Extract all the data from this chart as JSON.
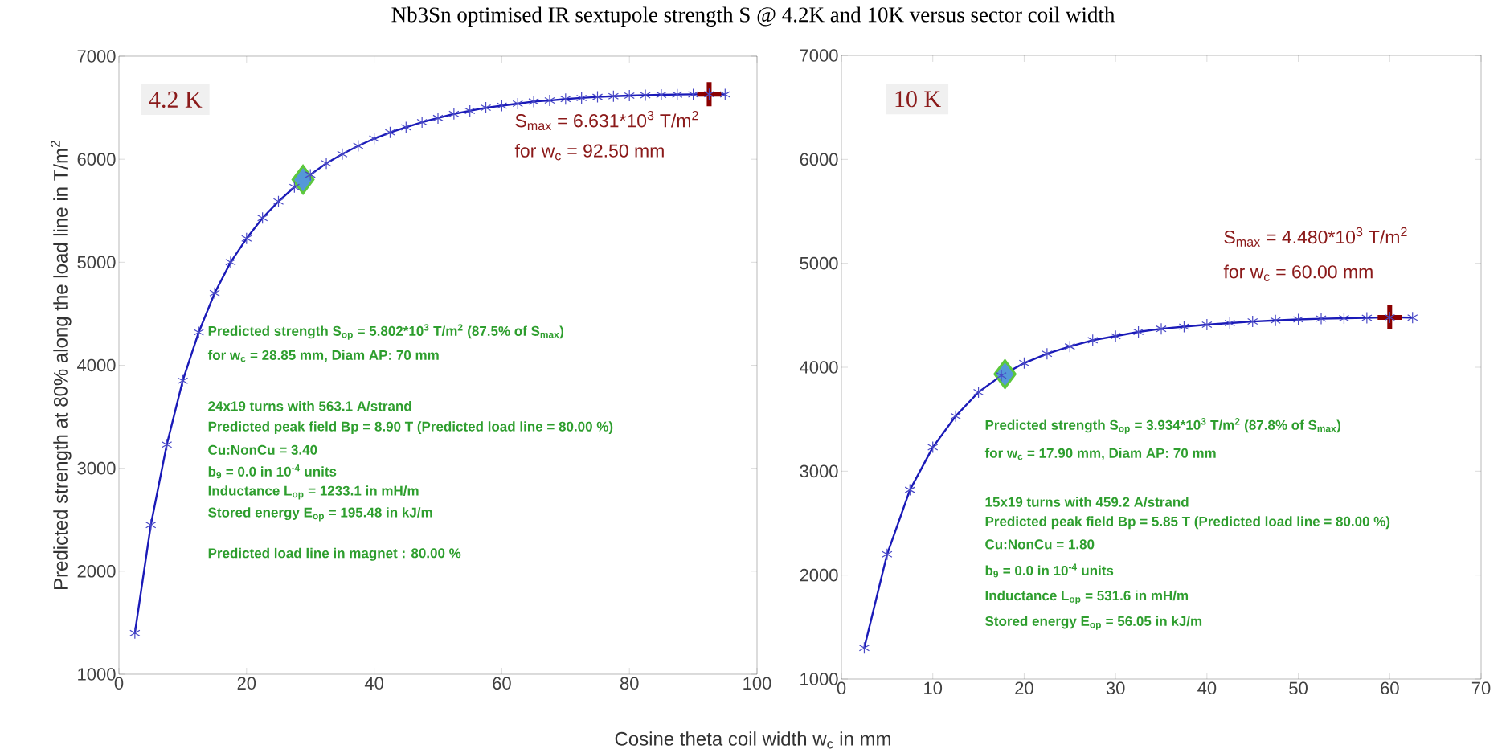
{
  "chart_data": [
    {
      "type": "line",
      "title": "Nb3Sn optimised IR sextupole strength S @ 4.2K and 10K versus sector coil width",
      "xlabel": "Cosine theta coil width w$_{c}$ in mm",
      "ylabel": "Predicted strength at 80% along the load line in T/m$^{2}$",
      "xlim": [
        0,
        100
      ],
      "xticks": [
        0,
        20,
        40,
        60,
        80,
        100
      ],
      "ylim": [
        1000,
        7000
      ],
      "yticks": [
        1000,
        2000,
        3000,
        4000,
        5000,
        6000,
        7000
      ],
      "marker": "cross",
      "line_style": "solid",
      "series": [
        {
          "color": "#1a1ab8",
          "x": [
            2.5,
            5,
            7.5,
            10,
            12.5,
            15,
            17.5,
            20,
            22.5,
            25,
            27.5,
            30,
            32.5,
            35,
            37.5,
            40,
            42.5,
            45,
            47.5,
            50,
            52.5,
            55,
            57.5,
            60,
            62.5,
            65,
            67.5,
            70,
            72.5,
            75,
            77.5,
            80,
            82.5,
            85,
            87.5,
            90,
            92.5,
            95
          ],
          "values": [
            1400,
            2450,
            3230,
            3850,
            4320,
            4700,
            5000,
            5230,
            5430,
            5590,
            5730,
            5850,
            5960,
            6050,
            6130,
            6200,
            6260,
            6310,
            6360,
            6400,
            6440,
            6470,
            6500,
            6520,
            6540,
            6560,
            6570,
            6585,
            6595,
            6605,
            6612,
            6618,
            6622,
            6626,
            6628,
            6630,
            6631,
            6630
          ]
        },
        {
          "type": "scatter",
          "marker": "diamond",
          "color": "#5cc83c",
          "x": [
            28.85
          ],
          "values": [
            5802
          ]
        },
        {
          "type": "scatter",
          "marker": "cross",
          "color": "#8b0000",
          "x": [
            92.5
          ],
          "values": [
            6631
          ]
        }
      ],
      "annotations": [
        "4.2 K",
        "S$_{max}$ = 6.631*10$^{3}$ T/m$^{2}$",
        "for w$_{c}$ = 92.50 mm",
        "Predicted strength S$_{op}$ = 5.802*10$^{3}$ T/m$^{2}$ (87.5% of S$_{max}$)",
        "for w$_{c}$ = 28.85 mm, Diam AP: 70 mm",
        "24x19 turns with 563.1 A/strand",
        "Predicted peak field Bp = 8.90 T (Predicted load line = 80.00 %)",
        "Cu:NonCu = 3.40",
        "b$_{9}$ = 0.0 in 10$^{-4}$ units",
        "Inductance L$_{op}$ = 1233.1 in mH/m",
        "Stored energy E$_{op}$ = 195.48 in kJ/m",
        "Predicted load line in magnet : 80.00 %"
      ]
    },
    {
      "type": "line",
      "xlim": [
        0,
        70
      ],
      "xticks": [
        0,
        10,
        20,
        30,
        40,
        50,
        60,
        70
      ],
      "ylim": [
        1000,
        7000
      ],
      "yticks": [
        1000,
        2000,
        3000,
        4000,
        5000,
        6000,
        7000
      ],
      "marker": "cross",
      "line_style": "solid",
      "series": [
        {
          "color": "#1a1ab8",
          "x": [
            2.5,
            5,
            7.5,
            10,
            12.5,
            15,
            17.5,
            20,
            22.5,
            25,
            27.5,
            30,
            32.5,
            35,
            37.5,
            40,
            42.5,
            45,
            47.5,
            50,
            52.5,
            55,
            57.5,
            60,
            62.5
          ],
          "values": [
            1300,
            2200,
            2820,
            3230,
            3530,
            3760,
            3920,
            4040,
            4130,
            4200,
            4260,
            4300,
            4340,
            4370,
            4390,
            4410,
            4425,
            4440,
            4450,
            4460,
            4467,
            4472,
            4476,
            4480,
            4478
          ]
        },
        {
          "type": "scatter",
          "marker": "diamond",
          "color": "#5cc83c",
          "x": [
            17.9
          ],
          "values": [
            3934
          ]
        },
        {
          "type": "scatter",
          "marker": "cross",
          "color": "#8b0000",
          "x": [
            60
          ],
          "values": [
            4480
          ]
        }
      ],
      "annotations": [
        "10 K",
        "S$_{max}$ = 4.480*10$^{3}$ T/m$^{2}$",
        "for w$_{c}$ = 60.00 mm",
        "Predicted strength S$_{op}$ = 3.934*10$^{3}$ T/m$^{2}$ (87.8% of S$_{max}$)",
        "for w$_{c}$ = 17.90 mm, Diam AP: 70 mm",
        "15x19 turns with 459.2 A/strand",
        "Predicted peak field Bp = 5.85 T (Predicted load line = 80.00 %)",
        "Cu:NonCu = 1.80",
        "b$_{9}$ = 0.0 in 10$^{-4}$ units",
        "Inductance L$_{op}$ = 531.6 in mH/m",
        "Stored energy E$_{op}$ = 56.05 in kJ/m"
      ]
    }
  ]
}
